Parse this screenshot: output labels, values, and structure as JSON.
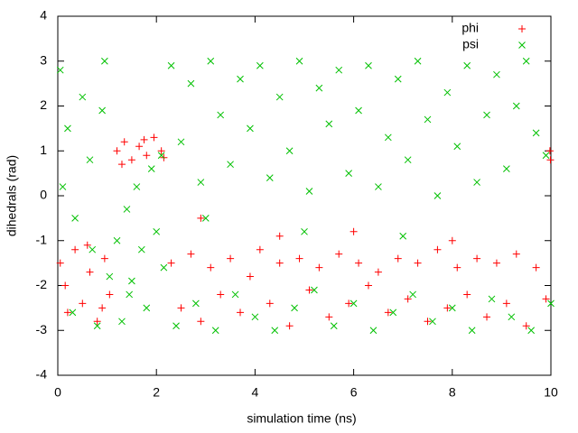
{
  "chart_data": {
    "type": "scatter",
    "xlabel": "simulation time (ns)",
    "ylabel": "dihedrals (rad)",
    "xlim": [
      0,
      10
    ],
    "xticks": [
      0,
      2,
      4,
      6,
      8,
      10
    ],
    "ylim": [
      -4,
      4
    ],
    "yticks": [
      -4,
      -3,
      -2,
      -1,
      0,
      1,
      2,
      3,
      4
    ],
    "legend": "top-right",
    "series": [
      {
        "name": "phi",
        "color": "#ff0000",
        "marker": "plus",
        "x": [
          0.05,
          0.2,
          0.35,
          0.5,
          0.65,
          0.8,
          0.95,
          1.05,
          0.15,
          0.6,
          0.9,
          1.2,
          1.35,
          1.5,
          1.65,
          1.8,
          1.95,
          2.1,
          1.3,
          1.75,
          2.15,
          2.3,
          2.5,
          2.7,
          2.9,
          3.1,
          3.3,
          3.5,
          3.7,
          3.9,
          4.1,
          4.3,
          4.5,
          4.7,
          4.9,
          5.1,
          5.3,
          5.5,
          5.7,
          5.9,
          6.1,
          6.3,
          6.5,
          6.7,
          6.9,
          7.1,
          7.3,
          7.5,
          7.7,
          7.9,
          8.1,
          8.3,
          8.5,
          8.7,
          8.9,
          9.1,
          9.3,
          9.5,
          9.7,
          9.9,
          2.9,
          4.5,
          6.0,
          8.0,
          9.98,
          9.99
        ],
        "values": [
          -1.5,
          -2.6,
          -1.2,
          -2.4,
          -1.7,
          -2.8,
          -1.4,
          -2.2,
          -2.0,
          -1.1,
          -2.5,
          1.0,
          1.2,
          0.8,
          1.1,
          0.9,
          1.3,
          1.0,
          0.7,
          1.25,
          0.85,
          -1.5,
          -2.5,
          -1.3,
          -2.8,
          -1.6,
          -2.2,
          -1.4,
          -2.6,
          -1.8,
          -1.2,
          -2.4,
          -1.5,
          -2.9,
          -1.4,
          -2.1,
          -1.6,
          -2.7,
          -1.3,
          -2.4,
          -1.5,
          -2.0,
          -1.7,
          -2.6,
          -1.4,
          -2.3,
          -1.5,
          -2.8,
          -1.2,
          -2.5,
          -1.6,
          -2.2,
          -1.4,
          -2.7,
          -1.5,
          -2.4,
          -1.3,
          -2.9,
          -1.6,
          -2.3,
          -0.5,
          -0.9,
          -0.8,
          -1.0,
          1.0,
          0.8
        ]
      },
      {
        "name": "psi",
        "color": "#00c000",
        "marker": "cross",
        "x": [
          0.05,
          0.2,
          0.35,
          0.5,
          0.65,
          0.8,
          0.95,
          1.05,
          0.3,
          0.7,
          0.1,
          0.9,
          1.2,
          1.3,
          1.4,
          1.5,
          1.6,
          1.7,
          1.8,
          1.9,
          2.0,
          2.1,
          2.15,
          1.45,
          2.3,
          2.5,
          2.7,
          2.9,
          3.1,
          3.3,
          3.5,
          3.7,
          3.9,
          4.1,
          4.3,
          4.5,
          4.7,
          4.9,
          5.1,
          5.3,
          5.5,
          5.7,
          5.9,
          6.1,
          6.3,
          6.5,
          6.7,
          6.9,
          7.1,
          7.3,
          7.5,
          7.7,
          7.9,
          8.1,
          8.3,
          8.5,
          8.7,
          8.9,
          9.1,
          9.3,
          9.5,
          9.7,
          9.9,
          2.4,
          2.8,
          3.2,
          3.6,
          4.0,
          4.4,
          4.8,
          5.2,
          5.6,
          6.0,
          6.4,
          6.8,
          7.2,
          7.6,
          8.0,
          8.4,
          8.8,
          9.2,
          9.6,
          10.0,
          3.0,
          5.0,
          7.0
        ],
        "values": [
          2.8,
          1.5,
          -0.5,
          2.2,
          0.8,
          -2.9,
          3.0,
          -1.8,
          -2.6,
          -1.2,
          0.2,
          1.9,
          -1.0,
          -2.8,
          -0.3,
          -1.9,
          0.2,
          -1.2,
          -2.5,
          0.6,
          -0.8,
          0.9,
          -1.6,
          -2.2,
          2.9,
          1.2,
          2.5,
          0.3,
          3.0,
          1.8,
          0.7,
          2.6,
          1.5,
          2.9,
          0.4,
          2.2,
          1.0,
          3.0,
          0.1,
          2.4,
          1.6,
          2.8,
          0.5,
          1.9,
          2.9,
          0.2,
          1.3,
          2.6,
          0.8,
          3.0,
          1.7,
          0.0,
          2.3,
          1.1,
          2.9,
          0.3,
          1.8,
          2.7,
          0.6,
          2.0,
          3.0,
          1.4,
          0.9,
          -2.9,
          -2.4,
          -3.0,
          -2.2,
          -2.7,
          -3.0,
          -2.5,
          -2.1,
          -2.9,
          -2.4,
          -3.0,
          -2.6,
          -2.2,
          -2.8,
          -2.5,
          -3.0,
          -2.3,
          -2.7,
          -3.0,
          -2.4,
          -0.5,
          -0.8,
          -0.9
        ]
      }
    ]
  }
}
